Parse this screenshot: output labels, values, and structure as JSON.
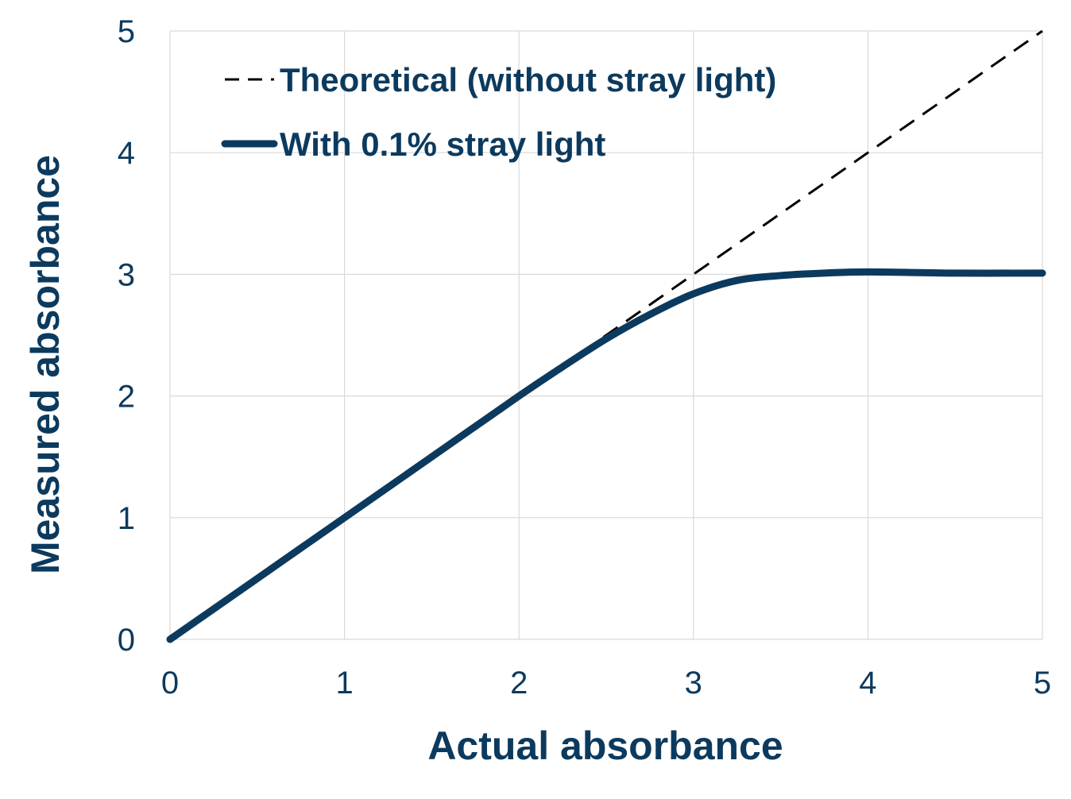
{
  "chart_data": {
    "type": "line",
    "xlabel": "Actual absorbance",
    "ylabel": "Measured absorbance",
    "xlim": [
      0,
      5
    ],
    "ylim": [
      0,
      5
    ],
    "x_ticks": [
      "0",
      "1",
      "2",
      "3",
      "4",
      "5"
    ],
    "y_ticks": [
      "0",
      "1",
      "2",
      "3",
      "4",
      "5"
    ],
    "grid": true,
    "legend_position": "top-left",
    "series": [
      {
        "name": "Theoretical (without stray light)",
        "style": "dashed",
        "color": "#000000",
        "x": [
          0,
          5
        ],
        "y": [
          0,
          5
        ]
      },
      {
        "name": "With 0.1% stray light",
        "style": "solid",
        "color": "#0c3a5e",
        "x": [
          0,
          0.5,
          1,
          1.5,
          2,
          2.25,
          2.5,
          2.75,
          3,
          3.25,
          3.5,
          3.75,
          4,
          4.5,
          5
        ],
        "y": [
          0,
          0.5,
          1,
          1.5,
          2,
          2.24,
          2.47,
          2.67,
          2.84,
          2.95,
          2.99,
          3.01,
          3.02,
          3.01,
          3.01
        ]
      }
    ]
  }
}
